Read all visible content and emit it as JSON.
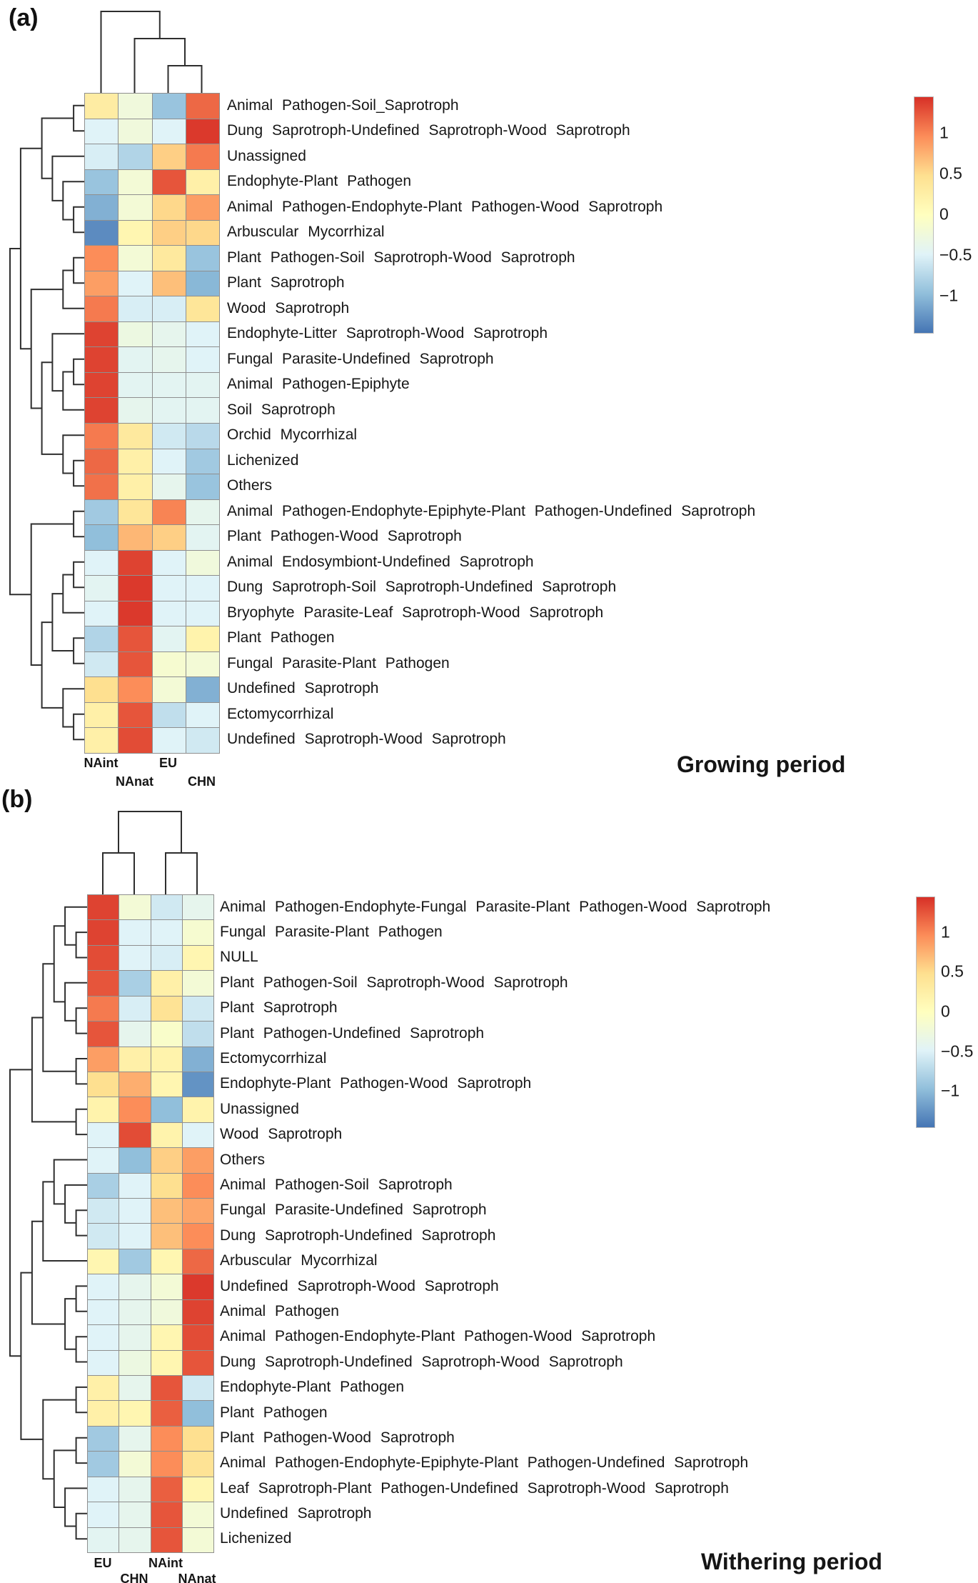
{
  "chart_data": [
    {
      "type": "heatmap",
      "panel_label": "(a)",
      "title": "Growing period",
      "columns": [
        "NAint",
        "NAnat",
        "EU",
        "CHN"
      ],
      "rows": [
        "Animal Pathogen-Soil_Saprotroph",
        "Dung Saprotroph-Undefined Saprotroph-Wood Saprotroph",
        "Unassigned",
        "Endophyte-Plant Pathogen",
        "Animal Pathogen-Endophyte-Plant Pathogen-Wood Saprotroph",
        "Arbuscular Mycorrhizal",
        "Plant Pathogen-Soil Saprotroph-Wood Saprotroph",
        "Plant Saprotroph",
        "Wood Saprotroph",
        "Endophyte-Litter Saprotroph-Wood Saprotroph",
        "Fungal Parasite-Undefined Saprotroph",
        "Animal Pathogen-Epiphyte",
        "Soil Saprotroph",
        "Orchid Mycorrhizal",
        "Lichenized",
        "Others",
        "Animal Pathogen-Endophyte-Epiphyte-Plant Pathogen-Undefined Saprotroph",
        "Plant Pathogen-Wood Saprotroph",
        "Animal Endosymbiont-Undefined Saprotroph",
        "Dung Saprotroph-Soil Saprotroph-Undefined Saprotroph",
        "Bryophyte Parasite-Leaf Saprotroph-Wood Saprotroph",
        "Plant Pathogen",
        "Fungal Parasite-Plant Pathogen",
        "Undefined Saprotroph",
        "Ectomycorrhizal",
        "Undefined Saprotroph-Wood Saprotroph"
      ],
      "values": [
        [
          0.3,
          -0.25,
          -0.95,
          1.2
        ],
        [
          -0.5,
          -0.25,
          -0.5,
          1.45
        ],
        [
          -0.55,
          -0.8,
          0.6,
          1.1
        ],
        [
          -0.95,
          -0.2,
          1.3,
          0.25
        ],
        [
          -1.1,
          -0.2,
          0.55,
          0.9
        ],
        [
          -1.35,
          0.15,
          0.6,
          0.55
        ],
        [
          1.0,
          -0.2,
          0.35,
          -0.95
        ],
        [
          0.9,
          -0.5,
          0.7,
          -1.05
        ],
        [
          1.1,
          -0.55,
          -0.55,
          0.4
        ],
        [
          1.4,
          -0.3,
          -0.4,
          -0.5
        ],
        [
          1.4,
          -0.45,
          -0.4,
          -0.5
        ],
        [
          1.4,
          -0.45,
          -0.45,
          -0.45
        ],
        [
          1.4,
          -0.4,
          -0.45,
          -0.45
        ],
        [
          1.1,
          0.35,
          -0.6,
          -0.75
        ],
        [
          1.2,
          0.25,
          -0.5,
          -0.9
        ],
        [
          1.15,
          0.25,
          -0.4,
          -0.95
        ],
        [
          -0.9,
          0.4,
          1.05,
          -0.4
        ],
        [
          -1.0,
          0.75,
          0.6,
          -0.45
        ],
        [
          -0.5,
          1.4,
          -0.5,
          -0.25
        ],
        [
          -0.45,
          1.45,
          -0.5,
          -0.5
        ],
        [
          -0.5,
          1.45,
          -0.5,
          -0.5
        ],
        [
          -0.8,
          1.3,
          -0.45,
          0.2
        ],
        [
          -0.6,
          1.3,
          -0.15,
          -0.2
        ],
        [
          0.5,
          1.0,
          -0.2,
          -1.1
        ],
        [
          0.25,
          1.3,
          -0.7,
          -0.5
        ],
        [
          0.25,
          1.35,
          -0.5,
          -0.6
        ]
      ],
      "col_tree": [
        0,
        [
          1,
          [
            2,
            3
          ]
        ]
      ],
      "row_tree": [
        [
          [
            [
              0,
              1
            ],
            [
              2,
              [
                3,
                [
                  4,
                  5
                ]
              ]
            ]
          ],
          [
            [
              [
                6,
                7
              ],
              8
            ],
            [
              [
                9,
                [
                  [
                    10,
                    11
                  ],
                  12
                ]
              ],
              [
                13,
                [
                  14,
                  15
                ]
              ]
            ]
          ]
        ],
        [
          [
            16,
            17
          ],
          [
            [
              [
                [
                  18,
                  19
                ],
                20
              ],
              [
                21,
                22
              ]
            ],
            [
              23,
              [
                24,
                25
              ]
            ]
          ]
        ]
      ],
      "legend": {
        "range": [
          -1.45,
          1.45
        ],
        "ticks": [
          {
            "v": 1,
            "label": "1"
          },
          {
            "v": 0.5,
            "label": "0.5"
          },
          {
            "v": 0,
            "label": "0"
          },
          {
            "v": -0.5,
            "label": "−0.5"
          },
          {
            "v": -1,
            "label": "−1"
          }
        ]
      },
      "colormap": [
        [
          -1.5,
          "#4575b4"
        ],
        [
          -1,
          "#91bfdb"
        ],
        [
          -0.5,
          "#e0f3f8"
        ],
        [
          0,
          "#ffffbf"
        ],
        [
          0.5,
          "#fee090"
        ],
        [
          1,
          "#fc8d59"
        ],
        [
          1.5,
          "#d73027"
        ]
      ]
    },
    {
      "type": "heatmap",
      "panel_label": "(b)",
      "title": "Withering period",
      "columns": [
        "EU",
        "CHN",
        "NAint",
        "NAnat"
      ],
      "rows": [
        "Animal Pathogen-Endophyte-Fungal Parasite-Plant Pathogen-Wood Saprotroph",
        "Fungal Parasite-Plant Pathogen",
        "NULL",
        "Plant Pathogen-Soil Saprotroph-Wood Saprotroph",
        "Plant Saprotroph",
        "Plant Pathogen-Undefined Saprotroph",
        "Ectomycorrhizal",
        "Endophyte-Plant Pathogen-Wood Saprotroph",
        "Unassigned",
        "Wood Saprotroph",
        "Others",
        "Animal Pathogen-Soil Saprotroph",
        "Fungal Parasite-Undefined Saprotroph",
        "Dung Saprotroph-Undefined Saprotroph",
        "Arbuscular Mycorrhizal",
        "Undefined Saprotroph-Wood Saprotroph",
        "Animal Pathogen",
        "Animal Pathogen-Endophyte-Plant Pathogen-Wood Saprotroph",
        "Dung Saprotroph-Undefined Saprotroph-Wood Saprotroph",
        "Endophyte-Plant Pathogen",
        "Plant Pathogen",
        "Plant Pathogen-Wood Saprotroph",
        "Animal Pathogen-Endophyte-Epiphyte-Plant Pathogen-Undefined Saprotroph",
        "Leaf Saprotroph-Plant Pathogen-Undefined Saprotroph-Wood Saprotroph",
        "Undefined Saprotroph",
        "Lichenized"
      ],
      "values": [
        [
          1.4,
          -0.2,
          -0.6,
          -0.4
        ],
        [
          1.4,
          -0.5,
          -0.5,
          -0.15
        ],
        [
          1.35,
          -0.5,
          -0.55,
          0.15
        ],
        [
          1.3,
          -0.85,
          0.25,
          -0.2
        ],
        [
          1.1,
          -0.55,
          0.45,
          -0.6
        ],
        [
          1.3,
          -0.4,
          -0.1,
          -0.7
        ],
        [
          0.9,
          0.25,
          0.2,
          -1.1
        ],
        [
          0.5,
          0.8,
          0.15,
          -1.3
        ],
        [
          0.2,
          1.0,
          -1.0,
          0.2
        ],
        [
          -0.5,
          1.35,
          0.2,
          -0.5
        ],
        [
          -0.5,
          -1.0,
          0.6,
          0.9
        ],
        [
          -0.85,
          -0.5,
          0.5,
          1.0
        ],
        [
          -0.6,
          -0.5,
          0.7,
          0.85
        ],
        [
          -0.6,
          -0.5,
          0.7,
          1.0
        ],
        [
          0.15,
          -0.9,
          0.15,
          1.2
        ],
        [
          -0.5,
          -0.4,
          -0.2,
          1.45
        ],
        [
          -0.5,
          -0.4,
          -0.25,
          1.4
        ],
        [
          -0.5,
          -0.4,
          0.15,
          1.35
        ],
        [
          -0.5,
          -0.3,
          0.15,
          1.3
        ],
        [
          0.25,
          -0.4,
          1.3,
          -0.6
        ],
        [
          0.25,
          0.15,
          1.25,
          -1.0
        ],
        [
          -0.9,
          -0.4,
          1.0,
          0.5
        ],
        [
          -0.9,
          -0.2,
          1.0,
          0.45
        ],
        [
          -0.5,
          -0.4,
          1.25,
          0.15
        ],
        [
          -0.5,
          -0.4,
          1.3,
          -0.2
        ],
        [
          -0.45,
          -0.4,
          1.3,
          -0.2
        ]
      ],
      "col_tree": [
        [
          0,
          1
        ],
        [
          2,
          3
        ]
      ],
      "row_tree": [
        [
          [
            [
              [
                0,
                [
                  1,
                  2
                ]
              ],
              [
                3,
                [
                  4,
                  5
                ]
              ]
            ],
            [
              6,
              7
            ]
          ],
          [
            8,
            9
          ]
        ],
        [
          [
            [
              [
                10,
                [
                  11,
                  [
                    12,
                    13
                  ]
                ]
              ],
              14
            ],
            [
              [
                15,
                16
              ],
              [
                17,
                18
              ]
            ]
          ],
          [
            [
              19,
              20
            ],
            [
              [
                21,
                22
              ],
              [
                23,
                [
                  24,
                  25
                ]
              ]
            ]
          ]
        ]
      ],
      "legend": {
        "range": [
          -1.45,
          1.45
        ],
        "ticks": [
          {
            "v": 1,
            "label": "1"
          },
          {
            "v": 0.5,
            "label": "0.5"
          },
          {
            "v": 0,
            "label": "0"
          },
          {
            "v": -0.5,
            "label": "−0.5"
          },
          {
            "v": -1,
            "label": "−1"
          }
        ]
      },
      "colormap": [
        [
          -1.5,
          "#4575b4"
        ],
        [
          -1,
          "#91bfdb"
        ],
        [
          -0.5,
          "#e0f3f8"
        ],
        [
          0,
          "#ffffbf"
        ],
        [
          0.5,
          "#fee090"
        ],
        [
          1,
          "#fc8d59"
        ],
        [
          1.5,
          "#d73027"
        ]
      ]
    }
  ]
}
